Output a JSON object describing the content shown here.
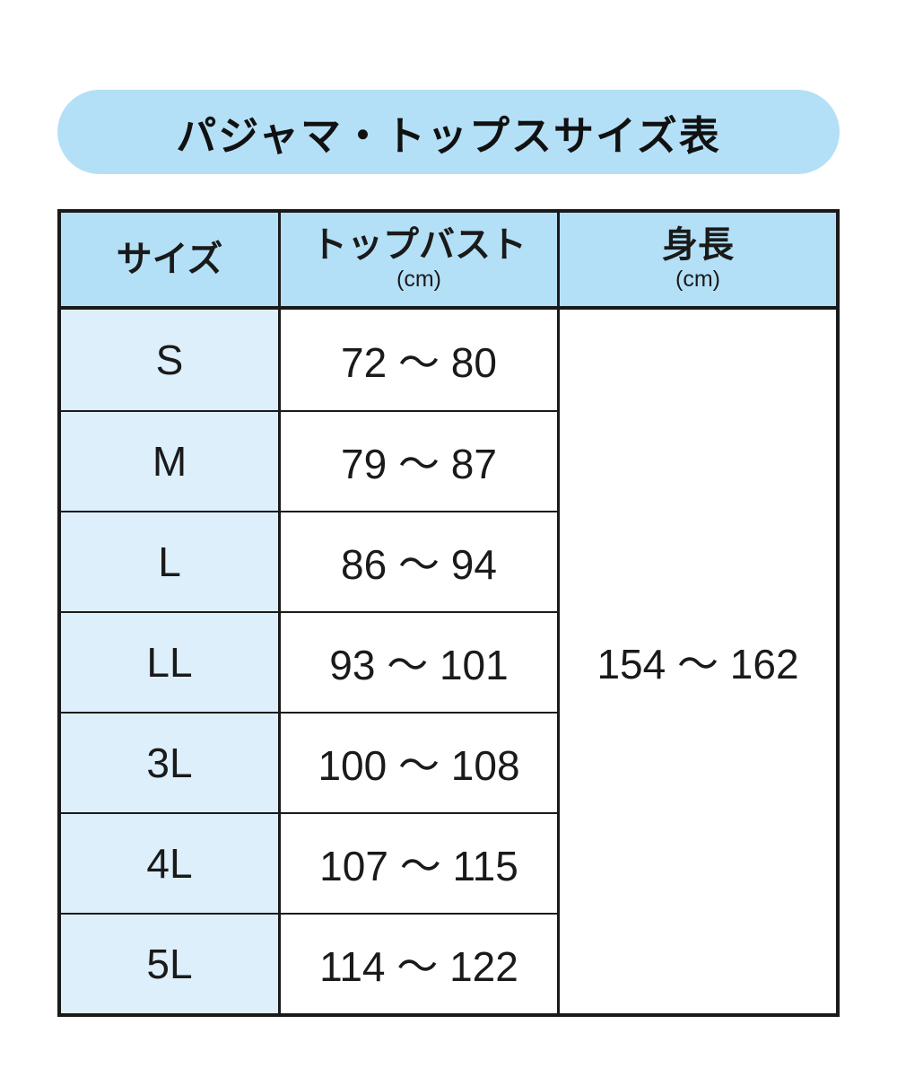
{
  "banner": {
    "title": "パジャマ・トップスサイズ表"
  },
  "table": {
    "header": {
      "size_label": "サイズ",
      "bust_label": "トップバスト",
      "bust_unit": "(cm)",
      "height_label": "身長",
      "height_unit": "(cm)"
    },
    "rows": [
      {
        "size": "S",
        "bust": "72 〜 80"
      },
      {
        "size": "M",
        "bust": "79 〜 87"
      },
      {
        "size": "L",
        "bust": "86 〜 94"
      },
      {
        "size": "LL",
        "bust": "93 〜 101"
      },
      {
        "size": "3L",
        "bust": "100 〜 108"
      },
      {
        "size": "4L",
        "bust": "107 〜 115"
      },
      {
        "size": "5L",
        "bust": "114 〜 122"
      }
    ],
    "height_value": "154 〜 162"
  },
  "colors": {
    "header_blue": "#B4E0F7",
    "row_label_blue": "#DCEFFA",
    "border_black": "#1A1A1A",
    "page_background": "#FFFFFF"
  },
  "chart_data": {
    "type": "table",
    "title": "パジャマ・トップスサイズ表",
    "columns": [
      "サイズ",
      "トップバスト (cm)",
      "身長 (cm)"
    ],
    "rows": [
      [
        "S",
        "72 〜 80",
        "154 〜 162"
      ],
      [
        "M",
        "79 〜 87",
        "154 〜 162"
      ],
      [
        "L",
        "86 〜 94",
        "154 〜 162"
      ],
      [
        "LL",
        "93 〜 101",
        "154 〜 162"
      ],
      [
        "3L",
        "100 〜 108",
        "154 〜 162"
      ],
      [
        "4L",
        "107 〜 115",
        "154 〜 162"
      ],
      [
        "5L",
        "114 〜 122",
        "154 〜 162"
      ]
    ],
    "notes": "身長 column is a single merged cell (154 〜 162) spanning all 7 size rows"
  }
}
